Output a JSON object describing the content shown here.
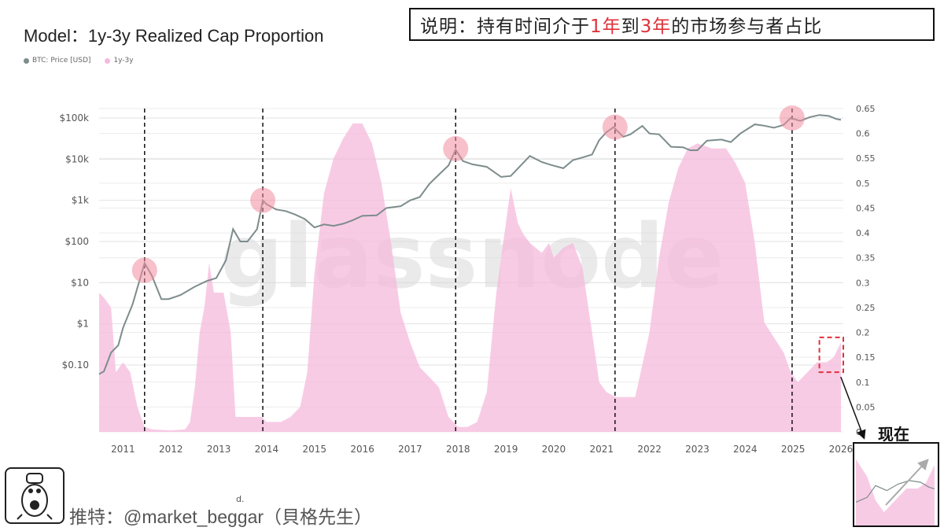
{
  "header": {
    "title": "Model：1y-3y Realized Cap Proportion",
    "note_prefix": "说明：持有时间介于",
    "note_red1": "1年",
    "note_mid": "到",
    "note_red2": "3年",
    "note_suffix": "的市场参与者占比"
  },
  "legend": [
    {
      "label": "BTC: Price [USD]",
      "color": "#7d8c8c"
    },
    {
      "label": "1y-3y",
      "color": "#f5b9dc"
    }
  ],
  "watermark": "glassnode",
  "footer": {
    "author": "推特：@market_beggar（貝格先生）",
    "mark": "d."
  },
  "inset": {
    "label": "现在"
  },
  "colors": {
    "price": "#7d8c8c",
    "area": "#f5b9dc",
    "highlight": "#f08ca0",
    "box": "#e0303a"
  },
  "chart_data": {
    "type": "area",
    "x_label": "",
    "x_ticks": [
      "2011",
      "2012",
      "2013",
      "2014",
      "2015",
      "2016",
      "2017",
      "2018",
      "2019",
      "2020",
      "2021",
      "2022",
      "2023",
      "2024",
      "2025",
      "2026"
    ],
    "y_left_ticks": [
      "$0.10",
      "$1",
      "$10",
      "$100",
      "$1k",
      "$10k",
      "$100k"
    ],
    "y_left_scale": "log",
    "y_right_ticks": [
      "0",
      "0.05",
      "0.1",
      "0.15",
      "0.2",
      "0.25",
      "0.3",
      "0.35",
      "0.4",
      "0.45",
      "0.5",
      "0.55",
      "0.6",
      "0.65"
    ],
    "y_right_range": [
      0,
      0.65
    ],
    "x_range": [
      2010.5,
      2026.05
    ],
    "grid": true,
    "series": [
      {
        "name": "1y-3y",
        "axis": "right",
        "type": "area",
        "points": [
          [
            2010.5,
            0.28
          ],
          [
            2010.6,
            0.27
          ],
          [
            2010.75,
            0.25
          ],
          [
            2010.85,
            0.12
          ],
          [
            2011.0,
            0.14
          ],
          [
            2011.15,
            0.12
          ],
          [
            2011.3,
            0.05
          ],
          [
            2011.45,
            0.01
          ],
          [
            2011.6,
            0.005
          ],
          [
            2012.0,
            0.003
          ],
          [
            2012.3,
            0.005
          ],
          [
            2012.4,
            0.02
          ],
          [
            2012.5,
            0.09
          ],
          [
            2012.6,
            0.2
          ],
          [
            2012.7,
            0.25
          ],
          [
            2012.8,
            0.34
          ],
          [
            2012.9,
            0.28
          ],
          [
            2013.1,
            0.28
          ],
          [
            2013.25,
            0.2
          ],
          [
            2013.35,
            0.03
          ],
          [
            2013.6,
            0.03
          ],
          [
            2013.9,
            0.03
          ],
          [
            2014.0,
            0.02
          ],
          [
            2014.3,
            0.02
          ],
          [
            2014.5,
            0.03
          ],
          [
            2014.7,
            0.05
          ],
          [
            2014.85,
            0.12
          ],
          [
            2015.0,
            0.32
          ],
          [
            2015.2,
            0.48
          ],
          [
            2015.4,
            0.55
          ],
          [
            2015.6,
            0.59
          ],
          [
            2015.8,
            0.62
          ],
          [
            2016.0,
            0.62
          ],
          [
            2016.2,
            0.58
          ],
          [
            2016.4,
            0.5
          ],
          [
            2016.6,
            0.38
          ],
          [
            2016.8,
            0.24
          ],
          [
            2017.0,
            0.18
          ],
          [
            2017.2,
            0.13
          ],
          [
            2017.4,
            0.11
          ],
          [
            2017.6,
            0.09
          ],
          [
            2017.8,
            0.03
          ],
          [
            2018.0,
            0.01
          ],
          [
            2018.2,
            0.01
          ],
          [
            2018.4,
            0.02
          ],
          [
            2018.6,
            0.08
          ],
          [
            2018.8,
            0.28
          ],
          [
            2019.0,
            0.42
          ],
          [
            2019.1,
            0.49
          ],
          [
            2019.25,
            0.42
          ],
          [
            2019.35,
            0.4
          ],
          [
            2019.5,
            0.38
          ],
          [
            2019.75,
            0.36
          ],
          [
            2019.9,
            0.38
          ],
          [
            2020.0,
            0.35
          ],
          [
            2020.2,
            0.37
          ],
          [
            2020.4,
            0.38
          ],
          [
            2020.6,
            0.33
          ],
          [
            2020.8,
            0.2
          ],
          [
            2020.95,
            0.1
          ],
          [
            2021.1,
            0.08
          ],
          [
            2021.3,
            0.07
          ],
          [
            2021.5,
            0.07
          ],
          [
            2021.7,
            0.07
          ],
          [
            2022.0,
            0.2
          ],
          [
            2022.2,
            0.35
          ],
          [
            2022.4,
            0.46
          ],
          [
            2022.6,
            0.53
          ],
          [
            2022.8,
            0.57
          ],
          [
            2023.0,
            0.58
          ],
          [
            2023.3,
            0.57
          ],
          [
            2023.6,
            0.57
          ],
          [
            2023.8,
            0.54
          ],
          [
            2024.0,
            0.5
          ],
          [
            2024.2,
            0.38
          ],
          [
            2024.4,
            0.22
          ],
          [
            2024.6,
            0.19
          ],
          [
            2024.8,
            0.16
          ],
          [
            2024.95,
            0.12
          ],
          [
            2025.1,
            0.1
          ],
          [
            2025.3,
            0.12
          ],
          [
            2025.5,
            0.14
          ],
          [
            2025.7,
            0.14
          ],
          [
            2025.85,
            0.15
          ],
          [
            2026.0,
            0.18
          ]
        ]
      },
      {
        "name": "BTC: Price [USD]",
        "axis": "left",
        "type": "line",
        "points": [
          [
            2010.5,
            0.06
          ],
          [
            2010.6,
            0.07
          ],
          [
            2010.75,
            0.2
          ],
          [
            2010.9,
            0.3
          ],
          [
            2011.0,
            0.8
          ],
          [
            2011.2,
            3
          ],
          [
            2011.45,
            30
          ],
          [
            2011.6,
            15
          ],
          [
            2011.8,
            4
          ],
          [
            2011.95,
            4
          ],
          [
            2012.2,
            5
          ],
          [
            2012.5,
            8
          ],
          [
            2012.75,
            11
          ],
          [
            2012.95,
            13
          ],
          [
            2013.15,
            35
          ],
          [
            2013.3,
            200
          ],
          [
            2013.45,
            100
          ],
          [
            2013.6,
            100
          ],
          [
            2013.8,
            200
          ],
          [
            2013.92,
            1000
          ],
          [
            2014.0,
            800
          ],
          [
            2014.2,
            600
          ],
          [
            2014.4,
            550
          ],
          [
            2014.6,
            450
          ],
          [
            2014.8,
            350
          ],
          [
            2015.0,
            220
          ],
          [
            2015.2,
            260
          ],
          [
            2015.4,
            240
          ],
          [
            2015.6,
            270
          ],
          [
            2015.8,
            330
          ],
          [
            2016.0,
            420
          ],
          [
            2016.3,
            430
          ],
          [
            2016.5,
            650
          ],
          [
            2016.8,
            720
          ],
          [
            2017.0,
            1000
          ],
          [
            2017.2,
            1200
          ],
          [
            2017.4,
            2500
          ],
          [
            2017.6,
            4200
          ],
          [
            2017.8,
            7000
          ],
          [
            2017.95,
            17000
          ],
          [
            2018.1,
            9000
          ],
          [
            2018.3,
            7500
          ],
          [
            2018.6,
            6500
          ],
          [
            2018.9,
            3700
          ],
          [
            2019.1,
            3900
          ],
          [
            2019.4,
            9000
          ],
          [
            2019.5,
            12000
          ],
          [
            2019.75,
            8500
          ],
          [
            2019.95,
            7200
          ],
          [
            2020.2,
            6000
          ],
          [
            2020.4,
            9500
          ],
          [
            2020.6,
            11000
          ],
          [
            2020.8,
            13000
          ],
          [
            2020.95,
            29000
          ],
          [
            2021.1,
            45000
          ],
          [
            2021.25,
            60000
          ],
          [
            2021.45,
            35000
          ],
          [
            2021.6,
            40000
          ],
          [
            2021.85,
            64000
          ],
          [
            2022.0,
            42000
          ],
          [
            2022.2,
            40000
          ],
          [
            2022.45,
            20000
          ],
          [
            2022.7,
            19500
          ],
          [
            2022.85,
            16500
          ],
          [
            2023.0,
            16500
          ],
          [
            2023.2,
            28000
          ],
          [
            2023.5,
            30000
          ],
          [
            2023.7,
            26000
          ],
          [
            2023.9,
            42000
          ],
          [
            2024.2,
            70000
          ],
          [
            2024.4,
            65000
          ],
          [
            2024.6,
            58000
          ],
          [
            2024.8,
            68000
          ],
          [
            2024.95,
            100000
          ],
          [
            2025.15,
            85000
          ],
          [
            2025.35,
            105000
          ],
          [
            2025.55,
            118000
          ],
          [
            2025.75,
            112000
          ],
          [
            2025.9,
            95000
          ],
          [
            2026.0,
            90000
          ]
        ]
      }
    ],
    "vlines": [
      2011.45,
      2013.92,
      2017.95,
      2021.28,
      2024.98
    ],
    "highlight_peaks": [
      [
        2011.45,
        20
      ],
      [
        2013.92,
        1000
      ],
      [
        2017.95,
        18000
      ],
      [
        2021.28,
        60000
      ],
      [
        2024.98,
        100000
      ]
    ],
    "annotation_box": {
      "x": [
        2025.55,
        2026.05
      ],
      "y_right": [
        0.12,
        0.19
      ]
    }
  }
}
